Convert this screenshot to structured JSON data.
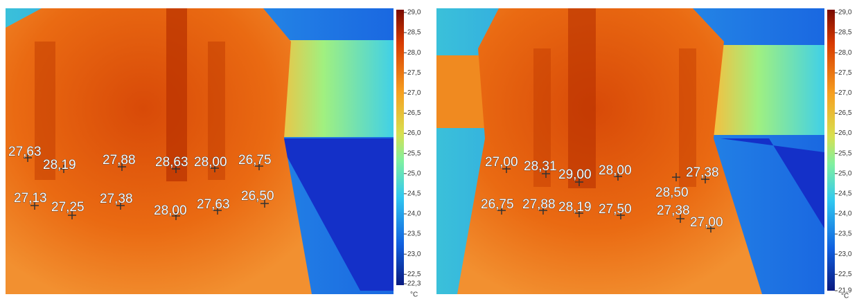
{
  "panels": [
    {
      "scale": {
        "ticks": [
          "29,0",
          "28,5",
          "28,0",
          "27,5",
          "27,0",
          "26,5",
          "26,0",
          "25,5",
          "25,0",
          "24,5",
          "24,0",
          "23,5",
          "23,0",
          "22,5",
          "22,3"
        ],
        "unit": "°C"
      },
      "points": [
        {
          "label": "27,63"
        },
        {
          "label": "28,19"
        },
        {
          "label": "27,88"
        },
        {
          "label": "28,63"
        },
        {
          "label": "28,00"
        },
        {
          "label": "26,75"
        },
        {
          "label": "27,13"
        },
        {
          "label": "27,25"
        },
        {
          "label": "27,38"
        },
        {
          "label": "28,00"
        },
        {
          "label": "27,63"
        },
        {
          "label": "26,50"
        }
      ]
    },
    {
      "scale": {
        "ticks": [
          "29,0",
          "28,5",
          "28,0",
          "27,5",
          "27,0",
          "26,5",
          "26,0",
          "25,5",
          "25,0",
          "24,5",
          "24,0",
          "23,5",
          "23,0",
          "22,5",
          "21,9"
        ],
        "unit": "°C"
      },
      "points": [
        {
          "label": "27,00"
        },
        {
          "label": "28,31"
        },
        {
          "label": "29,00"
        },
        {
          "label": "28,00"
        },
        {
          "label": "27,38"
        },
        {
          "label": "28,50"
        },
        {
          "label": "26,75"
        },
        {
          "label": "27,88"
        },
        {
          "label": "28,19"
        },
        {
          "label": "27,50"
        },
        {
          "label": "27,38"
        },
        {
          "label": "27,00"
        }
      ]
    }
  ]
}
